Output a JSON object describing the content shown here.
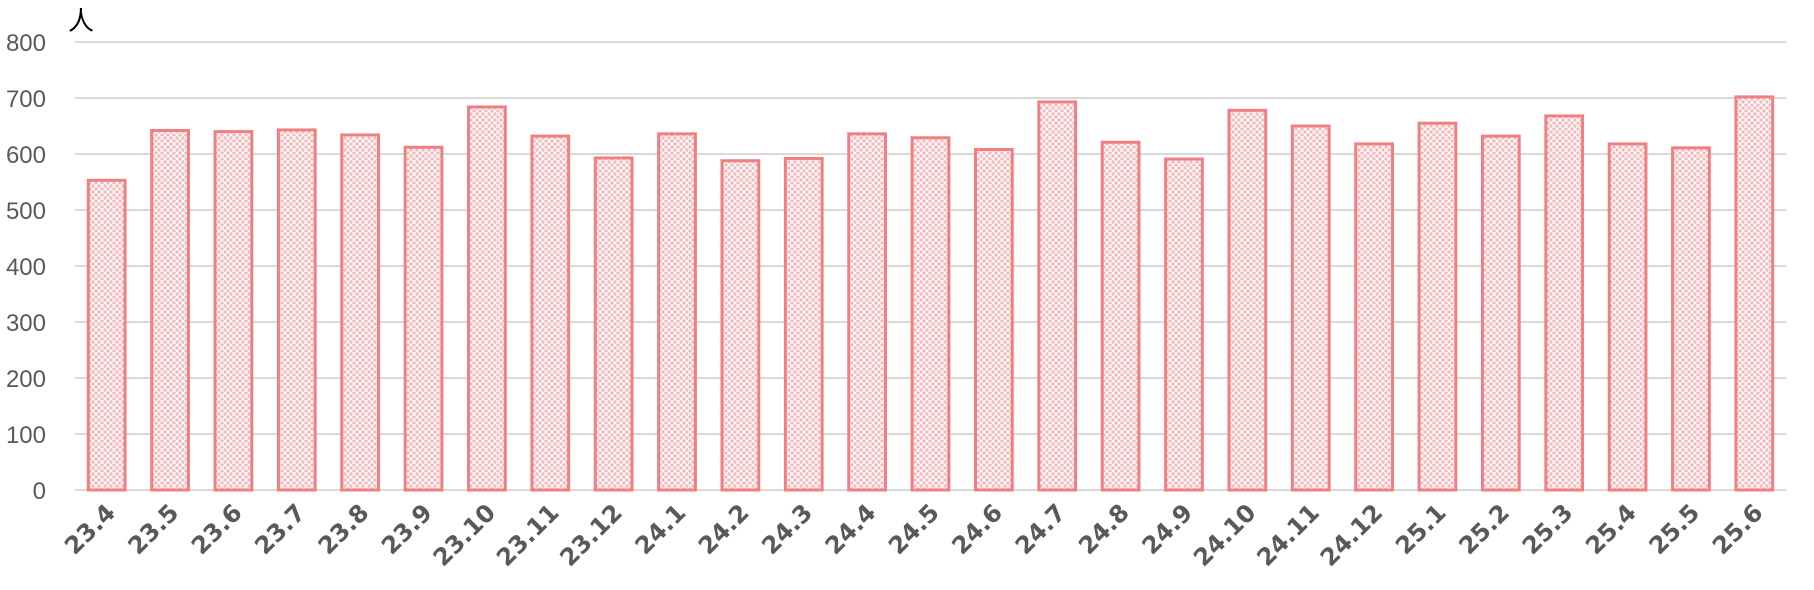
{
  "chart_data": {
    "type": "bar",
    "ylabel": "人",
    "ylim": [
      0,
      800
    ],
    "yticks": [
      0,
      100,
      200,
      300,
      400,
      500,
      600,
      700,
      800
    ],
    "grid": true,
    "categories": [
      "23.4",
      "23.5",
      "23.6",
      "23.7",
      "23.8",
      "23.9",
      "23.10",
      "23.11",
      "23.12",
      "24.1",
      "24.2",
      "24.3",
      "24.4",
      "24.5",
      "24.6",
      "24.7",
      "24.8",
      "24.9",
      "24.10",
      "24.11",
      "24.12",
      "25.1",
      "25.2",
      "25.3",
      "25.4",
      "25.5",
      "25.6"
    ],
    "series": [
      {
        "values": [
          553,
          642,
          640,
          643,
          634,
          612,
          684,
          632,
          593,
          636,
          588,
          592,
          636,
          629,
          608,
          693,
          621,
          591,
          678,
          650,
          618,
          655,
          632,
          668,
          618,
          611,
          702
        ],
        "fill": "#f4a6aa",
        "edge": "#f08080"
      }
    ]
  }
}
